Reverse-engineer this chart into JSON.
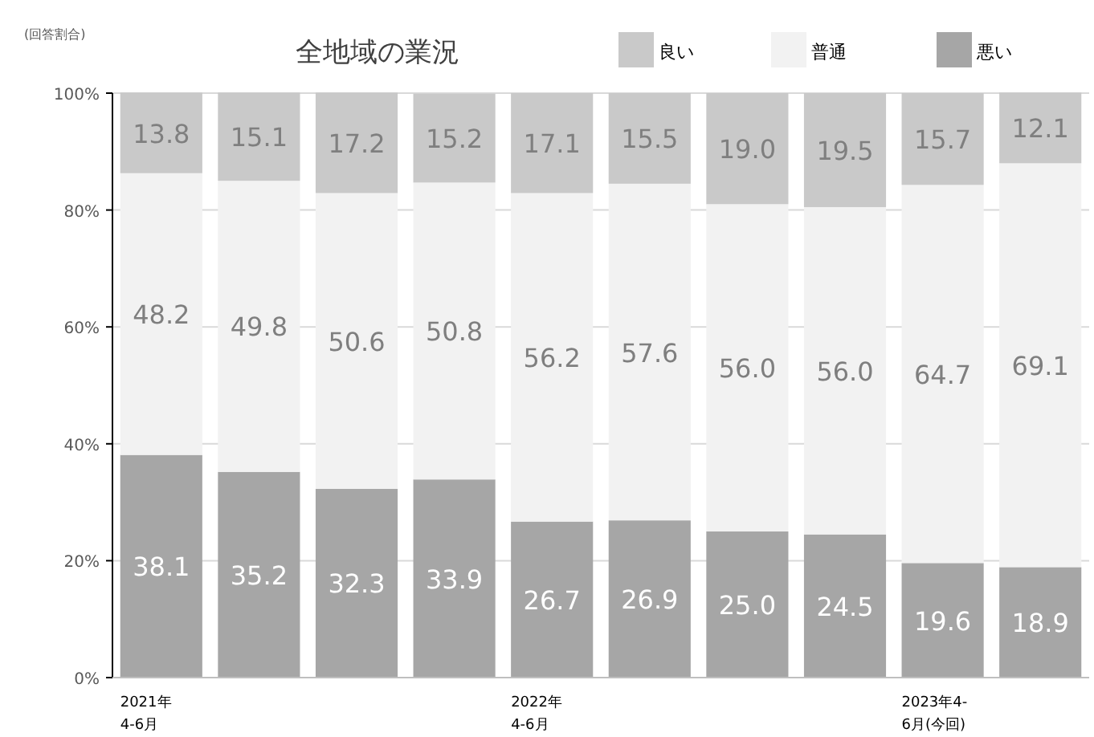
{
  "chart_data": {
    "type": "bar",
    "stacked": true,
    "title": "全地域の業況",
    "annotations": [
      "(回答割合)"
    ],
    "categories": [
      "2021年\n4-6月",
      null,
      null,
      null,
      "2022年\n4-6月",
      null,
      null,
      null,
      "2023年4-\n6月(今回)",
      null
    ],
    "series": [
      {
        "name": "悪い",
        "color": "#a6a6a6",
        "values": [
          38.1,
          35.2,
          32.3,
          33.9,
          26.7,
          26.9,
          25.0,
          24.5,
          19.6,
          18.9
        ],
        "value_labels": [
          "38.1",
          "35.2",
          "32.3",
          "33.9",
          "26.7",
          "26.9",
          "25.0",
          "24.5",
          "19.6",
          "18.9"
        ]
      },
      {
        "name": "普通",
        "color": "#f2f2f2",
        "values": [
          48.2,
          49.8,
          50.6,
          50.8,
          56.2,
          57.6,
          56.0,
          56.0,
          64.7,
          69.1
        ],
        "value_labels": [
          "48.2",
          "49.8",
          "50.6",
          "50.8",
          "56.2",
          "57.6",
          "56.0",
          "56.0",
          "64.7",
          "69.1"
        ]
      },
      {
        "name": "良い",
        "color": "#c9c9c9",
        "values": [
          13.8,
          15.1,
          17.2,
          15.2,
          17.1,
          15.5,
          19.0,
          19.5,
          15.7,
          12.1
        ],
        "value_labels": [
          "13.8",
          "15.1",
          "17.2",
          "15.2",
          "17.1",
          "15.5",
          "19.0",
          "19.5",
          "15.7",
          "12.1"
        ]
      }
    ],
    "ylim": [
      0,
      100
    ],
    "yticks": [
      {
        "value": 0,
        "label": "0%"
      },
      {
        "value": 20,
        "label": "20%"
      },
      {
        "value": 40,
        "label": "40%"
      },
      {
        "value": 60,
        "label": "60%"
      },
      {
        "value": 80,
        "label": "80%"
      },
      {
        "value": 100,
        "label": "100%"
      }
    ],
    "grid": "y",
    "legend": "top right"
  }
}
